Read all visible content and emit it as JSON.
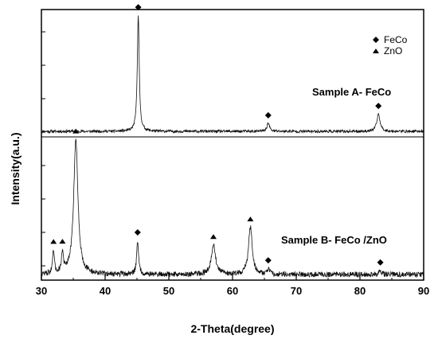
{
  "chart_data": {
    "type": "line",
    "xlabel": "2-Theta(degree)",
    "ylabel": "Intensity(a.u.)",
    "xlim": [
      30,
      90
    ],
    "xticks": [
      30,
      40,
      50,
      60,
      70,
      80,
      90
    ],
    "grid": false,
    "legend": {
      "placement": "top-right",
      "entries": [
        {
          "label": "FeCo",
          "marker": "diamond"
        },
        {
          "label": "ZnO",
          "marker": "triangle"
        }
      ]
    },
    "series": [
      {
        "annotation": "Sample A- FeCo",
        "baseline": 0.02,
        "noise": 0.012,
        "peaks": [
          {
            "x": 45.2,
            "height": 1.0,
            "width": 0.18,
            "marker": "diamond"
          },
          {
            "x": 65.6,
            "height": 0.07,
            "width": 0.25,
            "marker": "diamond"
          },
          {
            "x": 82.9,
            "height": 0.15,
            "width": 0.3,
            "marker": "diamond"
          }
        ]
      },
      {
        "annotation": "Sample B- FeCo /ZnO",
        "baseline": 0.03,
        "noise": 0.02,
        "peaks": [
          {
            "x": 31.9,
            "height": 0.17,
            "width": 0.15,
            "marker": "triangle"
          },
          {
            "x": 33.3,
            "height": 0.15,
            "width": 0.18,
            "marker": "triangle"
          },
          {
            "x": 35.4,
            "height": 1.0,
            "width": 0.4,
            "marker": "triangle"
          },
          {
            "x": 45.1,
            "height": 0.25,
            "width": 0.18,
            "marker": "diamond"
          },
          {
            "x": 57.0,
            "height": 0.22,
            "width": 0.4,
            "marker": "triangle"
          },
          {
            "x": 62.8,
            "height": 0.35,
            "width": 0.35,
            "marker": "triangle"
          },
          {
            "x": 65.6,
            "height": 0.04,
            "width": 0.2,
            "marker": "diamond"
          },
          {
            "x": 83.2,
            "height": 0.03,
            "width": 0.2,
            "marker": "diamond"
          }
        ]
      }
    ]
  }
}
